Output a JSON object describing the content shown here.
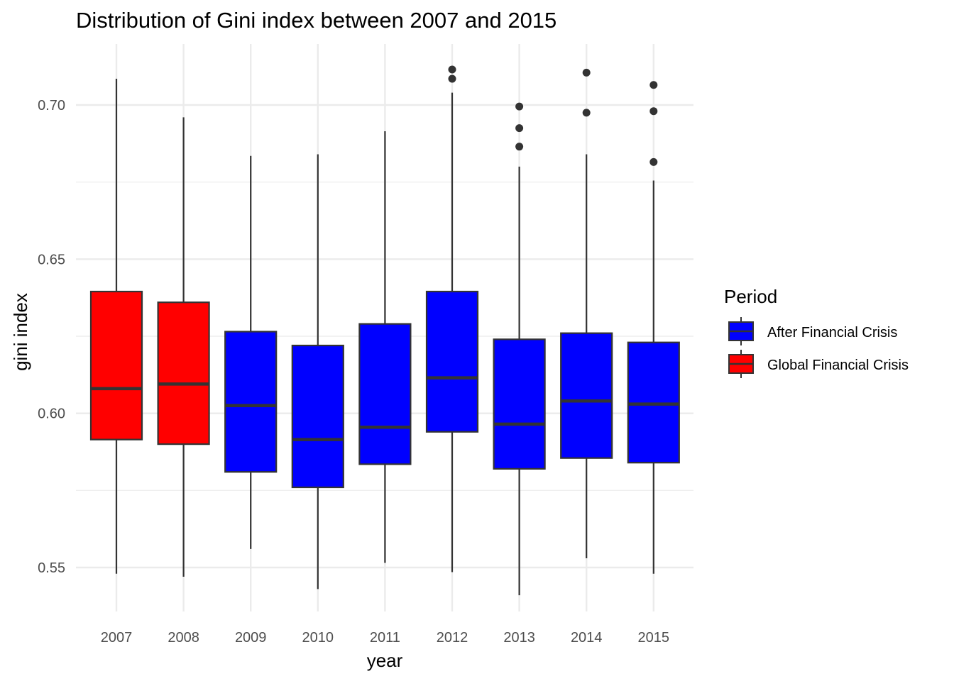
{
  "chart_data": {
    "type": "boxplot",
    "title": "Distribution of Gini index between 2007 and 2015",
    "xlabel": "year",
    "ylabel": "gini index",
    "ylim": [
      0.535,
      0.72
    ],
    "yticks": [
      "0.55",
      "0.60",
      "0.65",
      "0.70"
    ],
    "ytick_values": [
      0.55,
      0.6,
      0.65,
      0.7
    ],
    "grid": true,
    "legend": {
      "title": "Period",
      "position": "right",
      "entries": [
        {
          "label": "After Financial Crisis",
          "color": "#0000FF"
        },
        {
          "label": "Global Financial Crisis",
          "color": "#FF0000"
        }
      ]
    },
    "categories": [
      "2007",
      "2008",
      "2009",
      "2010",
      "2011",
      "2012",
      "2013",
      "2014",
      "2015"
    ],
    "boxes": [
      {
        "year": "2007",
        "period": "Global Financial Crisis",
        "min": 0.548,
        "q1": 0.5915,
        "median": 0.608,
        "q3": 0.6395,
        "max": 0.7085,
        "outliers": []
      },
      {
        "year": "2008",
        "period": "Global Financial Crisis",
        "min": 0.547,
        "q1": 0.59,
        "median": 0.6095,
        "q3": 0.636,
        "max": 0.696,
        "outliers": []
      },
      {
        "year": "2009",
        "period": "After Financial Crisis",
        "min": 0.556,
        "q1": 0.581,
        "median": 0.6025,
        "q3": 0.6265,
        "max": 0.6835,
        "outliers": []
      },
      {
        "year": "2010",
        "period": "After Financial Crisis",
        "min": 0.543,
        "q1": 0.576,
        "median": 0.5915,
        "q3": 0.622,
        "max": 0.684,
        "outliers": []
      },
      {
        "year": "2011",
        "period": "After Financial Crisis",
        "min": 0.5515,
        "q1": 0.5835,
        "median": 0.5955,
        "q3": 0.629,
        "max": 0.6915,
        "outliers": []
      },
      {
        "year": "2012",
        "period": "After Financial Crisis",
        "min": 0.5485,
        "q1": 0.594,
        "median": 0.6115,
        "q3": 0.6395,
        "max": 0.704,
        "outliers": [
          0.7085,
          0.7115
        ]
      },
      {
        "year": "2013",
        "period": "After Financial Crisis",
        "min": 0.541,
        "q1": 0.582,
        "median": 0.5965,
        "q3": 0.624,
        "max": 0.68,
        "outliers": [
          0.6865,
          0.6925,
          0.6995
        ]
      },
      {
        "year": "2014",
        "period": "After Financial Crisis",
        "min": 0.553,
        "q1": 0.5855,
        "median": 0.604,
        "q3": 0.626,
        "max": 0.684,
        "outliers": [
          0.6975,
          0.7105
        ]
      },
      {
        "year": "2015",
        "period": "After Financial Crisis",
        "min": 0.548,
        "q1": 0.584,
        "median": 0.603,
        "q3": 0.623,
        "max": 0.6755,
        "outliers": [
          0.6815,
          0.698,
          0.7065
        ]
      }
    ]
  }
}
